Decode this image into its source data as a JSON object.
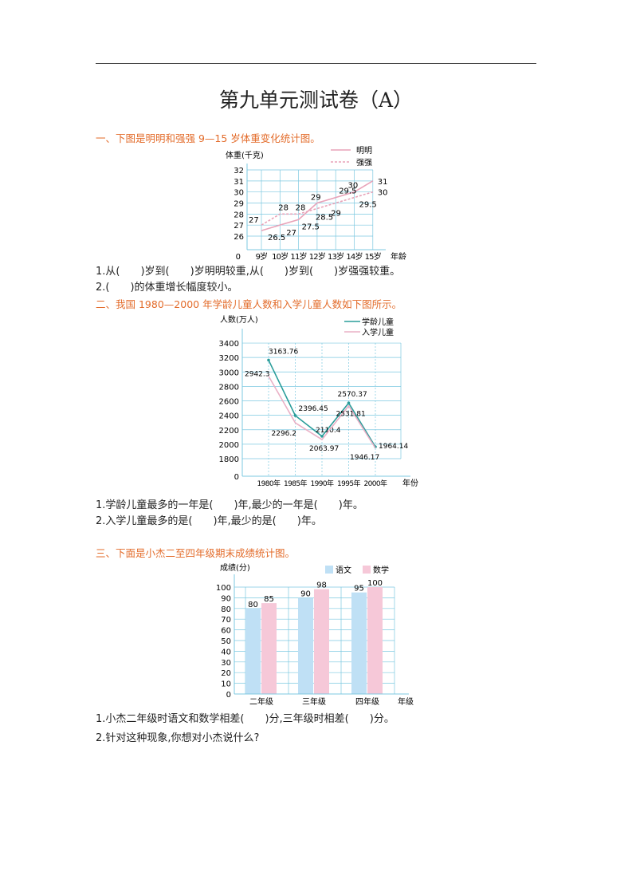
{
  "title": "第九单元测试卷（A）",
  "sections": [
    {
      "heading": "一、下图是明明和强强 9—15 岁体重变化统计图。",
      "questions": [
        "1.从(　　)岁到(　　)岁明明较重,从(　　)岁到(　　)岁强强较重。",
        "2.(　　)的体重增长幅度较小。"
      ]
    },
    {
      "heading": "二、我国 1980—2000 年学龄儿童人数和入学儿童人数如下图所示。",
      "questions": [
        "1.学龄儿童最多的一年是(　　)年,最少的一年是(　　)年。",
        "2.入学儿童最多的是(　　)年,最少的是(　　)年。"
      ]
    },
    {
      "heading": "三、下面是小杰二至四年级期末成绩统计图。",
      "questions": [
        "1.小杰二年级时语文和数学相差(　　)分,三年级时相差(　　)分。",
        "2.针对这种现象,你想对小杰说什么?"
      ]
    }
  ],
  "chart_data": [
    {
      "type": "line",
      "ylabel": "体重(千克)",
      "xlabel": "年龄",
      "origin_label": "0",
      "categories": [
        "9岁",
        "10岁",
        "11岁",
        "12岁",
        "13岁",
        "14岁",
        "15岁"
      ],
      "yticks": [
        26,
        27,
        28,
        29,
        30,
        31,
        32
      ],
      "ylim": [
        26,
        32
      ],
      "axis_break": true,
      "grid": true,
      "legend": "top-right",
      "series": [
        {
          "name": "明明",
          "style": "solid",
          "color": "#e8a2b8",
          "values": [
            26.5,
            27,
            27.5,
            29,
            29.5,
            30,
            31
          ]
        },
        {
          "name": "强强",
          "style": "dashed",
          "color": "#e8a2b8",
          "values": [
            27,
            28,
            28,
            28.5,
            29,
            29.5,
            30
          ]
        }
      ]
    },
    {
      "type": "line",
      "ylabel": "人数(万人)",
      "xlabel": "年份",
      "origin_label": "0",
      "categories": [
        "1980年",
        "1985年",
        "1990年",
        "1995年",
        "2000年"
      ],
      "yticks": [
        1800,
        2000,
        2200,
        2400,
        2600,
        2800,
        3000,
        3200,
        3400
      ],
      "ylim": [
        1800,
        3400
      ],
      "axis_break": true,
      "grid": true,
      "legend": "top-right",
      "series": [
        {
          "name": "学龄儿童",
          "color": "#2a9d9a",
          "values": [
            3163.76,
            2396.45,
            2110.4,
            2570.37,
            1964.14
          ]
        },
        {
          "name": "入学儿童",
          "color": "#eab0c6",
          "values": [
            2942.3,
            2296.2,
            2063.97,
            2531.81,
            1946.17
          ]
        }
      ]
    },
    {
      "type": "bar",
      "ylabel": "成绩(分)",
      "xlabel": "年级",
      "categories": [
        "二年级",
        "三年级",
        "四年级"
      ],
      "yticks": [
        0,
        10,
        20,
        30,
        40,
        50,
        60,
        70,
        80,
        90,
        100
      ],
      "ylim": [
        0,
        100
      ],
      "grid": true,
      "legend": "top-right",
      "series": [
        {
          "name": "语文",
          "color": "#bfe0f5",
          "values": [
            80,
            90,
            95
          ]
        },
        {
          "name": "数学",
          "color": "#f6c8d8",
          "values": [
            85,
            98,
            100
          ]
        }
      ]
    }
  ]
}
